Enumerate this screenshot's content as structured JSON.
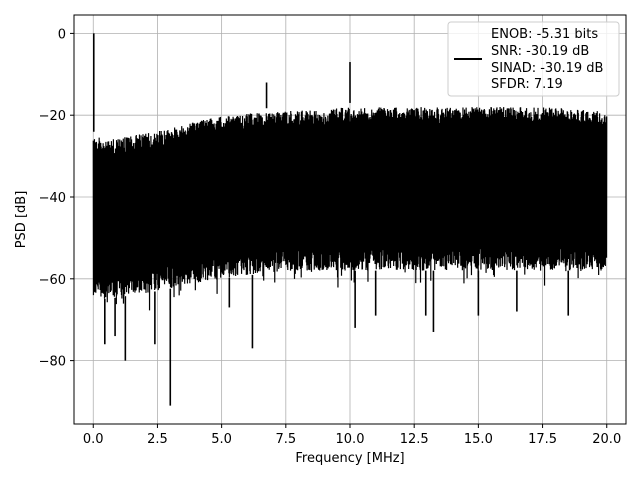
{
  "chart_data": {
    "type": "line",
    "title": "",
    "xlabel": "Frequency [MHz]",
    "ylabel": "PSD [dB]",
    "xlim": [
      -0.75,
      20.75
    ],
    "ylim": [
      -95.5,
      4.5
    ],
    "xticks": [
      0.0,
      2.5,
      5.0,
      7.5,
      10.0,
      12.5,
      15.0,
      17.5,
      20.0
    ],
    "xtick_labels": [
      "0.0",
      "2.5",
      "5.0",
      "7.5",
      "10.0",
      "12.5",
      "15.0",
      "17.5",
      "20.0"
    ],
    "yticks": [
      0,
      -20,
      -40,
      -60,
      -80
    ],
    "ytick_labels": [
      "0",
      "−20",
      "−40",
      "−60",
      "−80"
    ],
    "grid": true,
    "legend_position": "top-right",
    "legend_entries": [
      "ENOB: -5.31 bits",
      "SNR: -30.19 dB",
      "SINAD: -30.19 dB",
      "SFDR: 7.19"
    ],
    "line_color": "#000000",
    "noise_band": {
      "x": [
        0.0,
        0.5,
        2.5,
        5.0,
        7.5,
        10.0,
        12.5,
        15.0,
        17.5,
        20.0
      ],
      "top": [
        -24,
        -25,
        -23,
        -19,
        -18,
        -17,
        -17,
        -17,
        -17,
        -18
      ],
      "bottom": [
        -64,
        -65,
        -63,
        -60,
        -58,
        -58,
        -58,
        -58,
        -58,
        -58
      ]
    },
    "spikes": [
      {
        "x": 0.02,
        "y": 0
      },
      {
        "x": 10.0,
        "y": -7
      },
      {
        "x": 6.75,
        "y": -12
      },
      {
        "x": 3.0,
        "y": -91
      },
      {
        "x": 1.25,
        "y": -80
      },
      {
        "x": 6.2,
        "y": -77
      },
      {
        "x": 2.4,
        "y": -76
      },
      {
        "x": 0.45,
        "y": -76
      },
      {
        "x": 0.85,
        "y": -74
      },
      {
        "x": 10.2,
        "y": -72
      },
      {
        "x": 13.25,
        "y": -73
      },
      {
        "x": 12.95,
        "y": -69
      },
      {
        "x": 15.0,
        "y": -69
      },
      {
        "x": 18.5,
        "y": -69
      },
      {
        "x": 16.5,
        "y": -68
      },
      {
        "x": 5.3,
        "y": -67
      },
      {
        "x": 11.0,
        "y": -69
      }
    ]
  }
}
